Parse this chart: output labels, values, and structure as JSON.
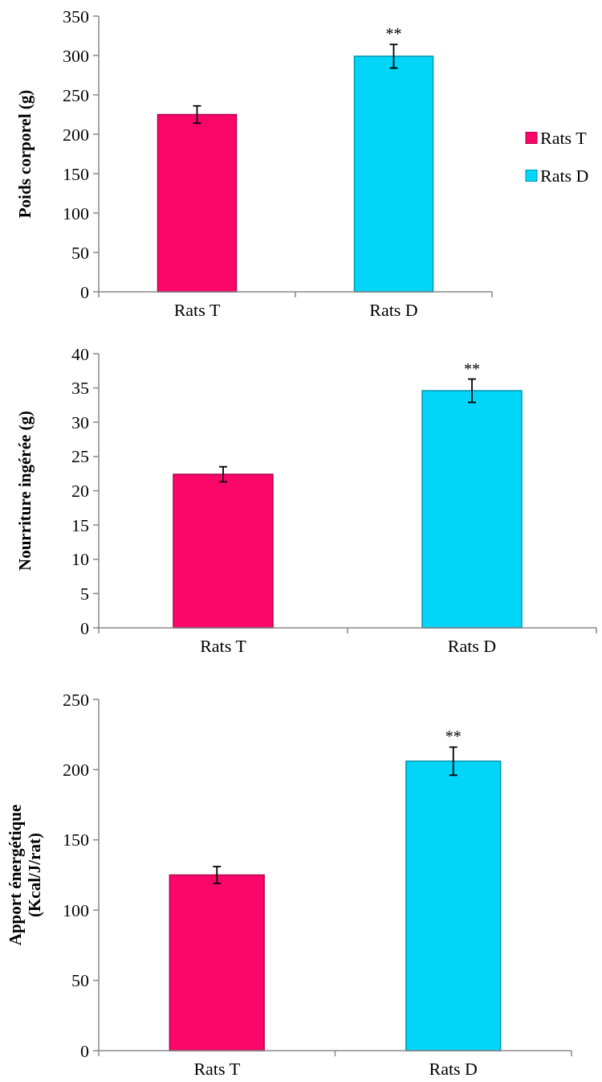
{
  "chart_data": [
    {
      "type": "bar",
      "ylabel": "Poids corporel (g)",
      "categories": [
        "Rats T",
        "Rats D"
      ],
      "series": [
        {
          "name": "Rats T",
          "color": "#fb0669",
          "values": [
            225,
            null
          ],
          "errors": [
            11,
            null
          ]
        },
        {
          "name": "Rats D",
          "color": "#02d5f8",
          "values": [
            null,
            299
          ],
          "errors": [
            null,
            15
          ]
        }
      ],
      "ylim": [
        0,
        350
      ],
      "yticks": [
        0,
        50,
        100,
        150,
        200,
        250,
        300,
        350
      ],
      "grid": false,
      "legend": "right",
      "annotations": [
        {
          "text": "**",
          "x": "Rats D",
          "y": 314
        }
      ]
    },
    {
      "type": "bar",
      "ylabel": "Nourriture ingérée (g)",
      "categories": [
        "Rats T",
        "Rats D"
      ],
      "series": [
        {
          "color": "#fb0669",
          "values": [
            22.4,
            null
          ],
          "errors": [
            1.1,
            null
          ]
        },
        {
          "color": "#02d5f8",
          "values": [
            null,
            34.6
          ],
          "errors": [
            null,
            1.7
          ]
        }
      ],
      "ylim": [
        0,
        40
      ],
      "yticks": [
        0,
        5,
        10,
        15,
        20,
        25,
        30,
        35,
        40
      ],
      "grid": false,
      "legend": false,
      "annotations": [
        {
          "text": "**",
          "x": "Rats D",
          "y": 36.3
        }
      ]
    },
    {
      "type": "bar",
      "ylabel": "Apport énergétique\n(Kcal/J/rat)",
      "categories": [
        "Rats T",
        "Rats D"
      ],
      "series": [
        {
          "color": "#fb0669",
          "values": [
            125,
            null
          ],
          "errors": [
            6,
            null
          ]
        },
        {
          "color": "#02d5f8",
          "values": [
            null,
            206
          ],
          "errors": [
            null,
            10
          ]
        }
      ],
      "ylim": [
        0,
        250
      ],
      "yticks": [
        0,
        50,
        100,
        150,
        200,
        250
      ],
      "grid": false,
      "legend": false,
      "annotations": [
        {
          "text": "**",
          "x": "Rats D",
          "y": 216
        }
      ]
    }
  ]
}
